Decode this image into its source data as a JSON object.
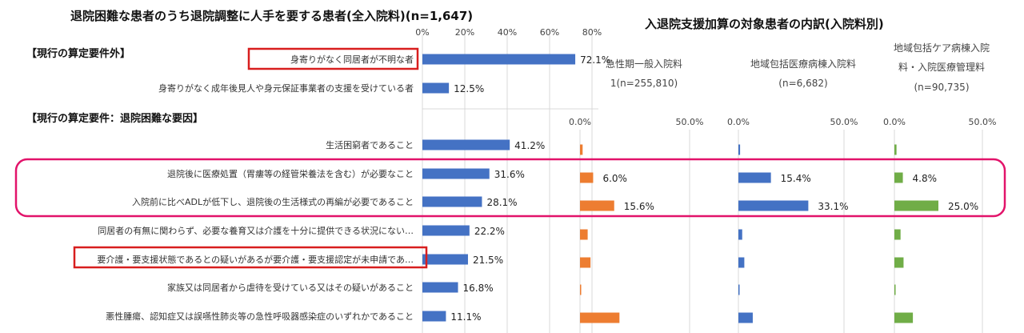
{
  "left_title": "退院困難な患者のうち退院調整に人手を要する患者(全入院料)(n=1,647)",
  "right_title": "入退院支援加算の対象患者の内訳(入院料別)",
  "section_outside": "【現行の算定要件外】",
  "section_inside": "【現行の算定要件：退院困難な要因】",
  "colors": {
    "left": "#4472c4",
    "acute": "#ed7d31",
    "community": "#4472c4",
    "care": "#70ad47",
    "highlight_red": "#d81e1e",
    "highlight_pink": "#e2136a",
    "grid": "#d9d9d9"
  },
  "chart_data": [
    {
      "type": "bar",
      "orientation": "horizontal",
      "title": "退院困難な患者のうち退院調整に人手を要する患者(全入院料)(n=1,647)",
      "xlim": [
        0,
        80
      ],
      "x_ticks": [
        "0%",
        "20%",
        "40%",
        "60%",
        "80%"
      ],
      "categories": [
        "身寄りがなく同居者が不明な者",
        "身寄りがなく成年後見人や身元保証事業者の支援を受けている者",
        "生活困窮者であること",
        "退院後に医療処置（胃瘻等の経管栄養法を含む）が必要なこと",
        "入院前に比べADLが低下し、退院後の生活様式の再編が必要であること",
        "同居者の有無に関わらず、必要な養育又は介護を十分に提供できる状況にない…",
        "要介護・要支援状態であるとの疑いがあるが要介護・要支援認定が未申請であ…",
        "家族又は同居者から虐待を受けている又はその疑いがあること",
        "悪性腫瘍、認知症又は誤嚥性肺炎等の急性呼吸器感染症のいずれかであること"
      ],
      "values": [
        72.1,
        12.5,
        41.2,
        31.6,
        28.1,
        22.2,
        21.5,
        16.8,
        11.1
      ],
      "value_labels": [
        "72.1%",
        "12.5%",
        "41.2%",
        "31.6%",
        "28.1%",
        "22.2%",
        "21.5%",
        "16.8%",
        "11.1%"
      ]
    },
    {
      "type": "bar",
      "orientation": "horizontal",
      "header": [
        "急性期一般入院料",
        "1(n=255,810)"
      ],
      "xlim": [
        0,
        50
      ],
      "x_ticks": [
        "0.0%",
        "50.0%"
      ],
      "values": [
        1.2,
        6.0,
        15.6,
        3.5,
        4.8,
        0.5,
        18.0
      ],
      "value_labels": [
        "",
        "6.0%",
        "15.6%",
        "",
        "",
        "",
        ""
      ]
    },
    {
      "type": "bar",
      "orientation": "horizontal",
      "header": [
        "地域包括医療病棟入院料",
        "(n=6,682)"
      ],
      "xlim": [
        0,
        50
      ],
      "x_ticks": [
        "0.0%",
        "50.0%"
      ],
      "values": [
        0.8,
        15.4,
        33.1,
        1.8,
        2.8,
        0.5,
        6.8
      ],
      "value_labels": [
        "",
        "15.4%",
        "33.1%",
        "",
        "",
        "",
        ""
      ]
    },
    {
      "type": "bar",
      "orientation": "horizontal",
      "header": [
        "地域包括ケア病棟入院",
        "料・入院医療管理料",
        "(n=90,735)"
      ],
      "xlim": [
        0,
        50
      ],
      "x_ticks": [
        "0.0%",
        "50.0%"
      ],
      "values": [
        1.2,
        4.8,
        25.0,
        3.5,
        5.2,
        0.3,
        10.5
      ],
      "value_labels": [
        "",
        "4.8%",
        "25.0%",
        "",
        "",
        "",
        ""
      ]
    }
  ]
}
